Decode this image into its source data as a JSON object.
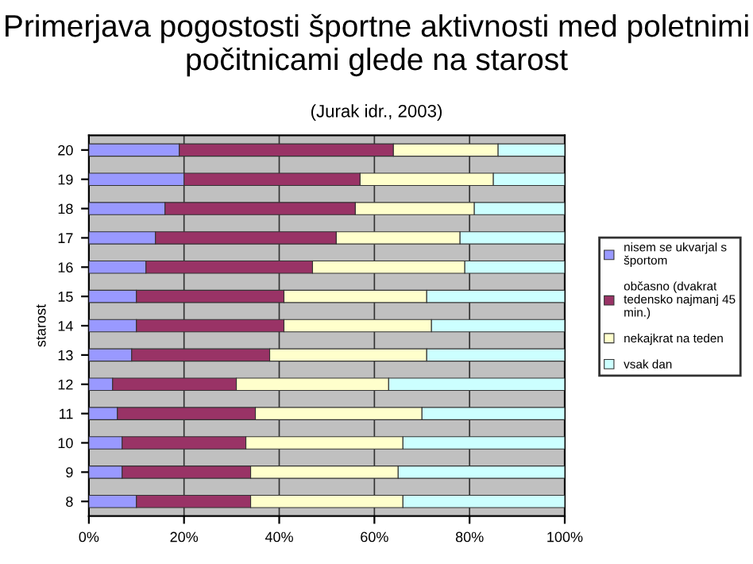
{
  "chart_data": {
    "type": "bar",
    "orientation": "horizontal",
    "stacked": true,
    "title": "Primerjava pogostosti športne aktivnosti med poletnimi počitnicami glede na starost",
    "subtitle": "(Jurak idr., 2003)",
    "ylabel": "starost",
    "categories": [
      "20",
      "19",
      "18",
      "17",
      "16",
      "15",
      "14",
      "13",
      "12",
      "11",
      "10",
      "9",
      "8"
    ],
    "series": [
      {
        "name": "nisem se ukvarjal s športom",
        "color": "#9999ff",
        "values": [
          19,
          20,
          16,
          14,
          12,
          10,
          10,
          9,
          5,
          6,
          7,
          7,
          10
        ]
      },
      {
        "name": "občasno (dvakrat tedensko najmanj 45 min.)",
        "color": "#993366",
        "values": [
          45,
          37,
          40,
          38,
          35,
          31,
          31,
          29,
          26,
          29,
          26,
          27,
          24
        ]
      },
      {
        "name": "nekajkrat na teden",
        "color": "#ffffcc",
        "values": [
          22,
          28,
          25,
          26,
          32,
          30,
          31,
          33,
          32,
          35,
          33,
          31,
          32
        ]
      },
      {
        "name": "vsak dan",
        "color": "#ccffff",
        "values": [
          14,
          15,
          19,
          22,
          21,
          29,
          28,
          29,
          37,
          30,
          34,
          35,
          34
        ]
      }
    ],
    "xlim": [
      0,
      100
    ],
    "xticks": [
      {
        "value": 0,
        "label": "0%"
      },
      {
        "value": 20,
        "label": "20%"
      },
      {
        "value": 40,
        "label": "40%"
      },
      {
        "value": 60,
        "label": "60%"
      },
      {
        "value": 80,
        "label": "80%"
      },
      {
        "value": 100,
        "label": "100%"
      }
    ],
    "grid": "x",
    "legend": "right"
  }
}
